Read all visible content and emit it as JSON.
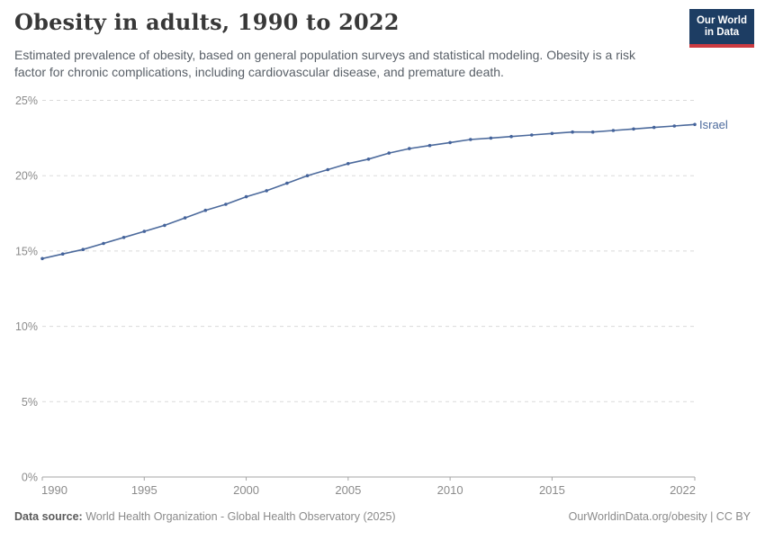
{
  "header": {
    "title": "Obesity in adults, 1990 to 2022",
    "subtitle": "Estimated prevalence of obesity, based on general population surveys and statistical modeling. Obesity is a risk factor for chronic complications, including cardiovascular disease, and premature death.",
    "logo": {
      "line1": "Our World",
      "line2": "in Data"
    }
  },
  "footer": {
    "data_source_label": "Data source:",
    "data_source_text": " World Health Organization - Global Health Observatory (2025)",
    "credit": "OurWorldinData.org/obesity | CC BY"
  },
  "colors": {
    "line": "#4c6a9c",
    "point": "#44639b",
    "end_label": "#4c6a9c",
    "grid": "#dadada",
    "axis": "#a5a5a5",
    "tick_text": "#8b8b8b",
    "logo_bg": "#1d3d63",
    "logo_stripe": "#cc3b41"
  },
  "chart_data": {
    "type": "line",
    "title": "Obesity in adults, 1990 to 2022",
    "xlabel": "",
    "ylabel": "",
    "unit": "%",
    "grid": "horizontal-dashed",
    "legend_position": "end-of-line-label",
    "xlim": [
      1990,
      2022
    ],
    "ylim": [
      0,
      25
    ],
    "xticks": {
      "values": [
        1990,
        1995,
        2000,
        2005,
        2010,
        2015,
        2022
      ],
      "labels": [
        "1990",
        "1995",
        "2000",
        "2005",
        "2010",
        "2015",
        "2022"
      ]
    },
    "yticks": {
      "values": [
        0,
        5,
        10,
        15,
        20,
        25
      ],
      "labels": [
        "0%",
        "5%",
        "10%",
        "15%",
        "20%",
        "25%"
      ]
    },
    "series": [
      {
        "name": "Israel",
        "color": "#4c6a9c",
        "x": [
          1990,
          1991,
          1992,
          1993,
          1994,
          1995,
          1996,
          1997,
          1998,
          1999,
          2000,
          2001,
          2002,
          2003,
          2004,
          2005,
          2006,
          2007,
          2008,
          2009,
          2010,
          2011,
          2012,
          2013,
          2014,
          2015,
          2016,
          2017,
          2018,
          2019,
          2020,
          2021,
          2022
        ],
        "values": [
          14.5,
          14.8,
          15.1,
          15.5,
          15.9,
          16.3,
          16.7,
          17.2,
          17.7,
          18.1,
          18.6,
          19.0,
          19.5,
          20.0,
          20.4,
          20.8,
          21.1,
          21.5,
          21.8,
          22.0,
          22.2,
          22.4,
          22.5,
          22.6,
          22.7,
          22.8,
          22.9,
          22.9,
          23.0,
          23.1,
          23.2,
          23.3,
          23.4
        ]
      }
    ]
  }
}
